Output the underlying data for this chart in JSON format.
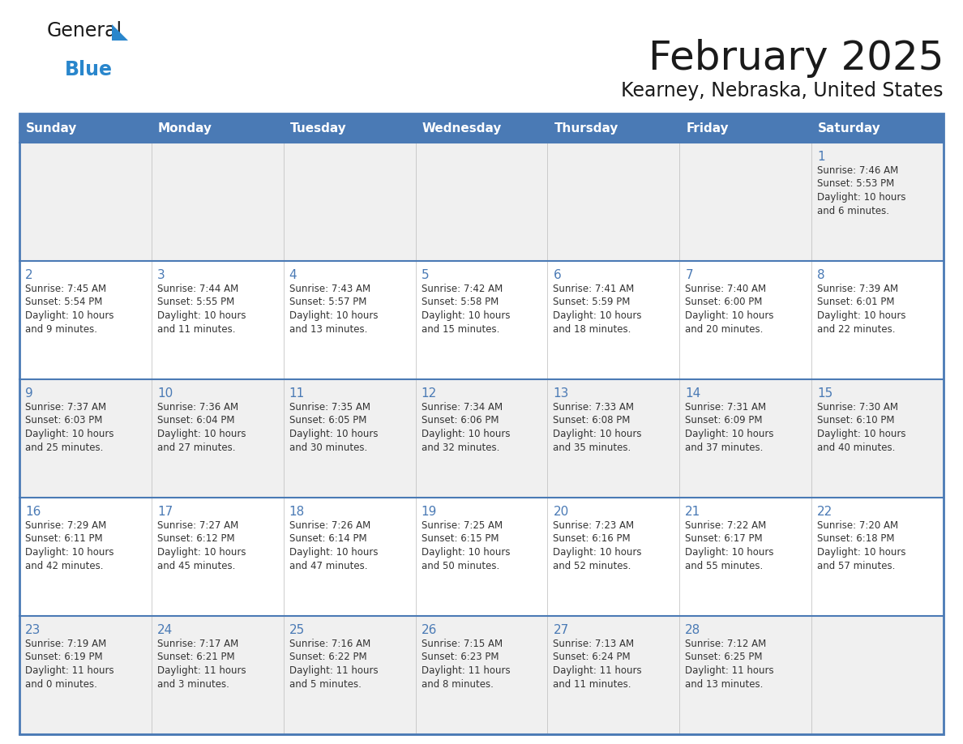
{
  "title": "February 2025",
  "subtitle": "Kearney, Nebraska, United States",
  "header_bg": "#4a7ab5",
  "header_text": "#ffffff",
  "days_of_week": [
    "Sunday",
    "Monday",
    "Tuesday",
    "Wednesday",
    "Thursday",
    "Friday",
    "Saturday"
  ],
  "row_bg_even": "#f0f0f0",
  "row_bg_odd": "#ffffff",
  "border_color": "#4a7ab5",
  "text_color": "#333333",
  "day_num_color": "#4a7ab5",
  "cal_data": [
    [
      null,
      null,
      null,
      null,
      null,
      null,
      {
        "day": "1",
        "sunrise": "7:46 AM",
        "sunset": "5:53 PM",
        "daylight": "10 hours\nand 6 minutes."
      }
    ],
    [
      {
        "day": "2",
        "sunrise": "7:45 AM",
        "sunset": "5:54 PM",
        "daylight": "10 hours\nand 9 minutes."
      },
      {
        "day": "3",
        "sunrise": "7:44 AM",
        "sunset": "5:55 PM",
        "daylight": "10 hours\nand 11 minutes."
      },
      {
        "day": "4",
        "sunrise": "7:43 AM",
        "sunset": "5:57 PM",
        "daylight": "10 hours\nand 13 minutes."
      },
      {
        "day": "5",
        "sunrise": "7:42 AM",
        "sunset": "5:58 PM",
        "daylight": "10 hours\nand 15 minutes."
      },
      {
        "day": "6",
        "sunrise": "7:41 AM",
        "sunset": "5:59 PM",
        "daylight": "10 hours\nand 18 minutes."
      },
      {
        "day": "7",
        "sunrise": "7:40 AM",
        "sunset": "6:00 PM",
        "daylight": "10 hours\nand 20 minutes."
      },
      {
        "day": "8",
        "sunrise": "7:39 AM",
        "sunset": "6:01 PM",
        "daylight": "10 hours\nand 22 minutes."
      }
    ],
    [
      {
        "day": "9",
        "sunrise": "7:37 AM",
        "sunset": "6:03 PM",
        "daylight": "10 hours\nand 25 minutes."
      },
      {
        "day": "10",
        "sunrise": "7:36 AM",
        "sunset": "6:04 PM",
        "daylight": "10 hours\nand 27 minutes."
      },
      {
        "day": "11",
        "sunrise": "7:35 AM",
        "sunset": "6:05 PM",
        "daylight": "10 hours\nand 30 minutes."
      },
      {
        "day": "12",
        "sunrise": "7:34 AM",
        "sunset": "6:06 PM",
        "daylight": "10 hours\nand 32 minutes."
      },
      {
        "day": "13",
        "sunrise": "7:33 AM",
        "sunset": "6:08 PM",
        "daylight": "10 hours\nand 35 minutes."
      },
      {
        "day": "14",
        "sunrise": "7:31 AM",
        "sunset": "6:09 PM",
        "daylight": "10 hours\nand 37 minutes."
      },
      {
        "day": "15",
        "sunrise": "7:30 AM",
        "sunset": "6:10 PM",
        "daylight": "10 hours\nand 40 minutes."
      }
    ],
    [
      {
        "day": "16",
        "sunrise": "7:29 AM",
        "sunset": "6:11 PM",
        "daylight": "10 hours\nand 42 minutes."
      },
      {
        "day": "17",
        "sunrise": "7:27 AM",
        "sunset": "6:12 PM",
        "daylight": "10 hours\nand 45 minutes."
      },
      {
        "day": "18",
        "sunrise": "7:26 AM",
        "sunset": "6:14 PM",
        "daylight": "10 hours\nand 47 minutes."
      },
      {
        "day": "19",
        "sunrise": "7:25 AM",
        "sunset": "6:15 PM",
        "daylight": "10 hours\nand 50 minutes."
      },
      {
        "day": "20",
        "sunrise": "7:23 AM",
        "sunset": "6:16 PM",
        "daylight": "10 hours\nand 52 minutes."
      },
      {
        "day": "21",
        "sunrise": "7:22 AM",
        "sunset": "6:17 PM",
        "daylight": "10 hours\nand 55 minutes."
      },
      {
        "day": "22",
        "sunrise": "7:20 AM",
        "sunset": "6:18 PM",
        "daylight": "10 hours\nand 57 minutes."
      }
    ],
    [
      {
        "day": "23",
        "sunrise": "7:19 AM",
        "sunset": "6:19 PM",
        "daylight": "11 hours\nand 0 minutes."
      },
      {
        "day": "24",
        "sunrise": "7:17 AM",
        "sunset": "6:21 PM",
        "daylight": "11 hours\nand 3 minutes."
      },
      {
        "day": "25",
        "sunrise": "7:16 AM",
        "sunset": "6:22 PM",
        "daylight": "11 hours\nand 5 minutes."
      },
      {
        "day": "26",
        "sunrise": "7:15 AM",
        "sunset": "6:23 PM",
        "daylight": "11 hours\nand 8 minutes."
      },
      {
        "day": "27",
        "sunrise": "7:13 AM",
        "sunset": "6:24 PM",
        "daylight": "11 hours\nand 11 minutes."
      },
      {
        "day": "28",
        "sunrise": "7:12 AM",
        "sunset": "6:25 PM",
        "daylight": "11 hours\nand 13 minutes."
      },
      null
    ]
  ],
  "logo_text_general": "General",
  "logo_text_blue": "Blue",
  "logo_color_general": "#1a1a1a",
  "logo_color_blue": "#2986cc",
  "logo_triangle_color": "#2986cc"
}
